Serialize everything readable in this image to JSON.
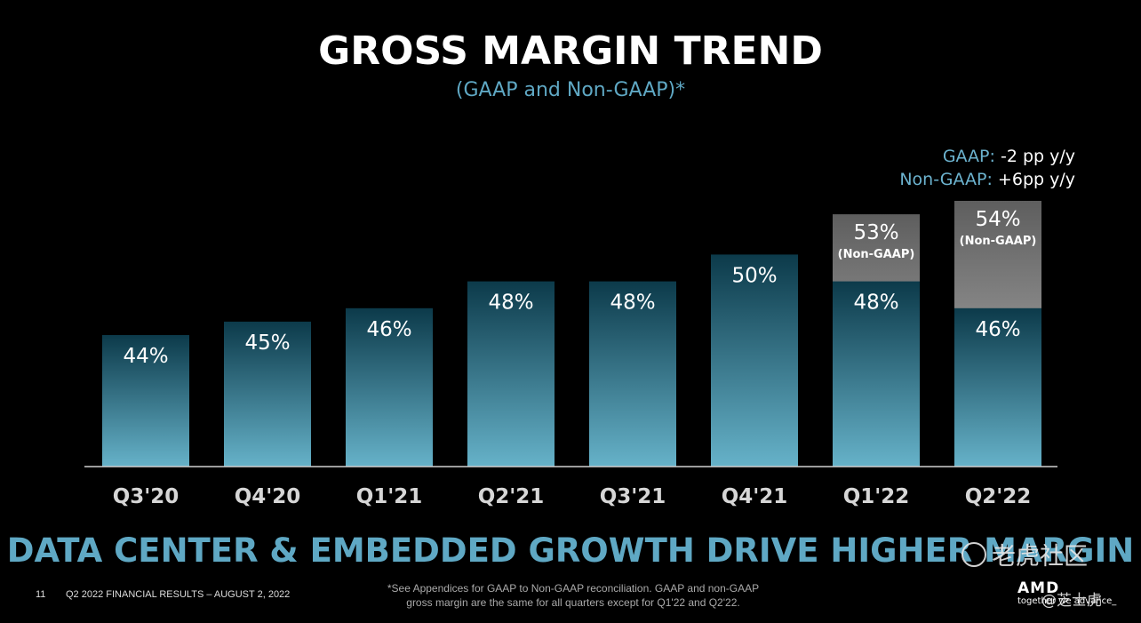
{
  "header": {
    "title": "GROSS MARGIN TREND",
    "subtitle": "(GAAP and Non-GAAP)*"
  },
  "annotation": {
    "gaap_label": "GAAP:",
    "gaap_value": " -2 pp y/y",
    "nongaap_label": "Non-GAAP:",
    "nongaap_value": " +6pp y/y"
  },
  "chart_data": {
    "type": "bar",
    "categories": [
      "Q3'20",
      "Q4'20",
      "Q1'21",
      "Q2'21",
      "Q3'21",
      "Q4'21",
      "Q1'22",
      "Q2'22"
    ],
    "series": [
      {
        "name": "GAAP",
        "values": [
          44,
          45,
          46,
          48,
          48,
          50,
          48,
          46
        ],
        "labels": [
          "44%",
          "45%",
          "46%",
          "48%",
          "48%",
          "50%",
          "48%",
          "46%"
        ]
      },
      {
        "name": "Non-GAAP",
        "values": [
          null,
          null,
          null,
          null,
          null,
          null,
          53,
          54
        ],
        "labels": [
          null,
          null,
          null,
          null,
          null,
          null,
          "53%",
          "54%"
        ],
        "sublabel": "(Non-GAAP)"
      }
    ],
    "ylim": [
      34.2,
      54
    ],
    "colors": {
      "gaap_top": "#0c3a4a",
      "gaap_bottom": "#66b2c9",
      "nongaap_top": "#5e5e5e",
      "nongaap_bottom": "#bdbdbd",
      "axis": "#cfcfcf",
      "category_label": "#d6d6d6"
    }
  },
  "tagline": "DATA CENTER & EMBEDDED GROWTH DRIVE HIGHER MARGIN",
  "footer": {
    "page_number": "11",
    "left_text": "Q2 2022 FINANCIAL RESULTS – AUGUST 2, 2022",
    "footnote_line1": "*See Appendices for GAAP to Non-GAAP reconciliation. GAAP and non-GAAP",
    "footnote_line2": "gross margin are the same for all quarters except for Q1'22 and Q2'22.",
    "logo_brand": "AMD",
    "logo_tagline": "together we advance_"
  },
  "watermark": {
    "text": "老虎社区",
    "handle": "@芝士虎",
    "icon": "tiger-community-icon"
  }
}
